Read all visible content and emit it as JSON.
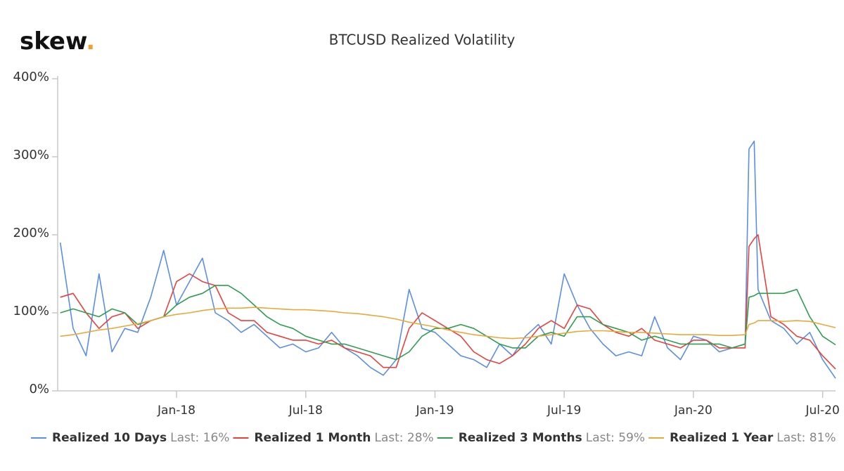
{
  "logo": {
    "text": "skew",
    "dot": "."
  },
  "chart_data": {
    "type": "line",
    "title": "BTCUSD Realized Volatility",
    "x": [
      2017.55,
      2017.6,
      2017.65,
      2017.7,
      2017.75,
      2017.8,
      2017.85,
      2017.9,
      2017.95,
      2018.0,
      2018.05,
      2018.1,
      2018.15,
      2018.2,
      2018.25,
      2018.3,
      2018.35,
      2018.4,
      2018.45,
      2018.5,
      2018.55,
      2018.6,
      2018.65,
      2018.7,
      2018.75,
      2018.8,
      2018.85,
      2018.9,
      2018.95,
      2019.0,
      2019.05,
      2019.1,
      2019.15,
      2019.2,
      2019.25,
      2019.3,
      2019.35,
      2019.4,
      2019.45,
      2019.5,
      2019.55,
      2019.6,
      2019.65,
      2019.7,
      2019.75,
      2019.8,
      2019.85,
      2019.9,
      2019.95,
      2020.0,
      2020.05,
      2020.1,
      2020.15,
      2020.2,
      2020.215,
      2020.235,
      2020.25,
      2020.3,
      2020.35,
      2020.4,
      2020.45,
      2020.5,
      2020.55
    ],
    "series": [
      {
        "name": "Realized 10 Days",
        "last_label": "Last: 16%",
        "color": "#5b8ee6",
        "values": [
          190,
          80,
          45,
          150,
          50,
          80,
          75,
          120,
          180,
          110,
          140,
          170,
          100,
          90,
          75,
          85,
          70,
          55,
          60,
          50,
          55,
          75,
          55,
          45,
          30,
          20,
          40,
          130,
          80,
          75,
          60,
          45,
          40,
          30,
          60,
          45,
          70,
          85,
          60,
          150,
          110,
          80,
          60,
          45,
          50,
          45,
          95,
          55,
          40,
          70,
          65,
          50,
          55,
          60,
          310,
          320,
          130,
          90,
          80,
          60,
          75,
          40,
          16
        ]
      },
      {
        "name": "Realized 1 Month",
        "last_label": "Last: 28%",
        "color": "#e8413c",
        "values": [
          120,
          125,
          100,
          80,
          95,
          100,
          80,
          90,
          95,
          140,
          150,
          140,
          135,
          100,
          90,
          90,
          75,
          70,
          65,
          65,
          60,
          65,
          55,
          50,
          45,
          30,
          30,
          80,
          100,
          90,
          80,
          70,
          50,
          40,
          35,
          45,
          60,
          80,
          90,
          80,
          110,
          105,
          85,
          75,
          70,
          80,
          65,
          60,
          55,
          65,
          65,
          55,
          55,
          55,
          185,
          195,
          200,
          95,
          85,
          70,
          65,
          45,
          28
        ]
      },
      {
        "name": "Realized 3 Months",
        "last_label": "Last: 59%",
        "color": "#2e9e4f",
        "values": [
          100,
          105,
          100,
          95,
          105,
          100,
          85,
          90,
          95,
          110,
          120,
          125,
          135,
          135,
          125,
          110,
          95,
          85,
          80,
          70,
          65,
          60,
          60,
          55,
          50,
          45,
          40,
          50,
          70,
          80,
          80,
          85,
          80,
          70,
          60,
          55,
          55,
          70,
          75,
          70,
          95,
          95,
          85,
          80,
          75,
          65,
          70,
          65,
          60,
          60,
          60,
          60,
          55,
          60,
          120,
          122,
          125,
          125,
          125,
          130,
          95,
          70,
          59
        ]
      },
      {
        "name": "Realized 1 Year",
        "last_label": "Last: 81%",
        "color": "#e8a93a",
        "values": [
          70,
          72,
          75,
          78,
          80,
          83,
          86,
          90,
          95,
          98,
          100,
          103,
          105,
          106,
          106,
          107,
          106,
          105,
          104,
          104,
          103,
          102,
          100,
          99,
          97,
          95,
          92,
          88,
          85,
          82,
          78,
          75,
          72,
          70,
          68,
          67,
          68,
          70,
          72,
          74,
          76,
          77,
          77,
          76,
          75,
          75,
          74,
          73,
          72,
          72,
          72,
          71,
          71,
          72,
          85,
          87,
          90,
          90,
          89,
          90,
          89,
          85,
          81
        ]
      }
    ],
    "xlim": [
      2017.54,
      2020.55
    ],
    "xticks": [
      {
        "value": 2018.0,
        "label": "Jan-18"
      },
      {
        "value": 2018.5,
        "label": "Jul-18"
      },
      {
        "value": 2019.0,
        "label": "Jan-19"
      },
      {
        "value": 2019.5,
        "label": "Jul-19"
      },
      {
        "value": 2020.0,
        "label": "Jan-20"
      },
      {
        "value": 2020.5,
        "label": "Jul-20"
      }
    ],
    "ylim": [
      0,
      400
    ],
    "yticks": [
      {
        "value": 0,
        "label": "0%"
      },
      {
        "value": 100,
        "label": "100%"
      },
      {
        "value": 200,
        "label": "200%"
      },
      {
        "value": 300,
        "label": "300%"
      },
      {
        "value": 400,
        "label": "400%"
      }
    ],
    "grid": false
  }
}
